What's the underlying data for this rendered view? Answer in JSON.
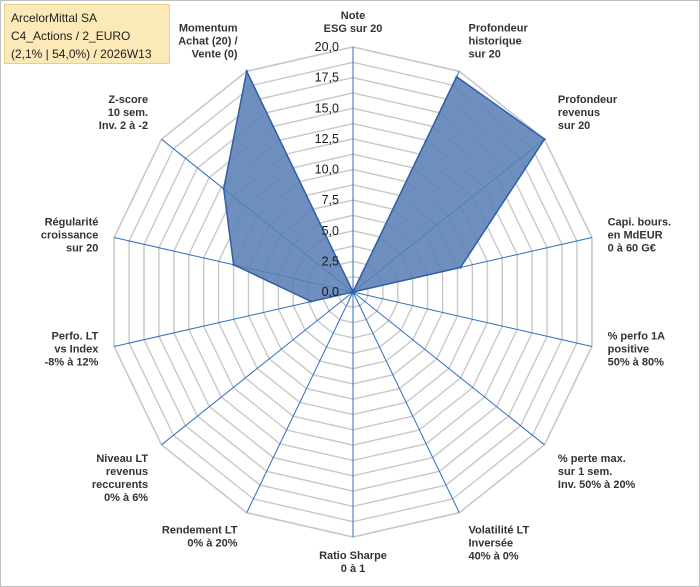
{
  "title_box": {
    "line1": "ArcelorMittal SA",
    "line2": "C4_Actions / 2_EURO",
    "line3": "(2,1% | 54,0%) / 2026W13"
  },
  "colors": {
    "fill": "#5b7fb5",
    "stroke": "#2e5ea8",
    "grid": "#c8c8c8",
    "axis": "#2f6fbf",
    "title_bg": "#fce9b8"
  },
  "chart_data": {
    "type": "radar",
    "r_min": 0,
    "r_max": 20,
    "r_step": 1.25,
    "tick_labels": [
      "0,0",
      "2,5",
      "5,0",
      "7,5",
      "10,0",
      "12,5",
      "15,0",
      "17,5",
      "20,0"
    ],
    "categories": [
      [
        "Note",
        "ESG sur 20"
      ],
      [
        "Profondeur",
        "historique",
        "sur 20"
      ],
      [
        "Profondeur",
        "revenus",
        "sur 20"
      ],
      [
        "Capi. bours.",
        "en MdEUR",
        "0 à 60 G€"
      ],
      [
        "% perfo 1A",
        "positive",
        "50% à 80%"
      ],
      [
        "% perte max.",
        "sur 1 sem.",
        "Inv. 50% à 20%"
      ],
      [
        "Volatilité LT",
        "Inversée",
        "40% à 0%"
      ],
      [
        "Ratio Sharpe",
        "0 à 1"
      ],
      [
        "Rendement LT",
        "0% à 20%"
      ],
      [
        "Niveau LT",
        "revenus",
        "reccurents",
        "0% à 6%"
      ],
      [
        "Perfo. LT",
        "vs Index",
        "-8% à 12%"
      ],
      [
        "Régularité",
        "croissance",
        "sur 20"
      ],
      [
        "Z-score",
        "10 sem.",
        "Inv. 2 à -2"
      ],
      [
        "Momentum",
        "Achat (20) /",
        "Vente (0)"
      ]
    ],
    "series": [
      {
        "name": "ArcelorMittal SA",
        "values": [
          0,
          19.5,
          20,
          9,
          0,
          0,
          0,
          0,
          0,
          0,
          3.5,
          10,
          13.5,
          20
        ]
      }
    ]
  }
}
